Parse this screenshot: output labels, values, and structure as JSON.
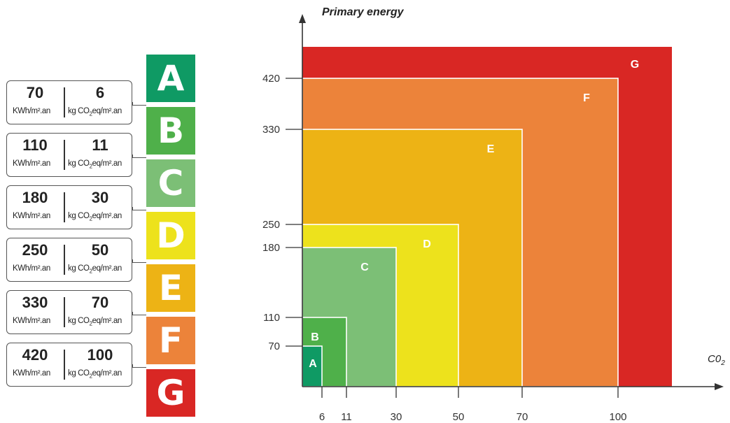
{
  "chart_data": [
    {
      "type": "table",
      "classes": [
        {
          "label": "A",
          "color": "#0f9a64",
          "energy": "70",
          "co2": "6"
        },
        {
          "label": "B",
          "color": "#4fb04a",
          "energy": "110",
          "co2": "11"
        },
        {
          "label": "C",
          "color": "#7cbf76",
          "energy": "180",
          "co2": "30"
        },
        {
          "label": "D",
          "color": "#ede21c",
          "energy": "250",
          "co2": "50"
        },
        {
          "label": "E",
          "color": "#edb315",
          "energy": "330",
          "co2": "70"
        },
        {
          "label": "F",
          "color": "#ec833a",
          "energy": "420",
          "co2": "100"
        },
        {
          "label": "G",
          "color": "#d92724",
          "energy": "",
          "co2": ""
        }
      ],
      "energy_unit": "KWh/m².an",
      "co2_unit_prefix": "kg CO",
      "co2_unit_sub": "2",
      "co2_unit_suffix": "eq/m².an"
    },
    {
      "type": "area",
      "ylabel": "Primary energy",
      "xlabel_main": "C0",
      "xlabel_sub": "2",
      "x_ticks": [
        6,
        11,
        30,
        50,
        70,
        100
      ],
      "y_ticks": [
        70,
        110,
        180,
        250,
        330,
        420
      ],
      "regions": [
        {
          "label": "G",
          "x_max": null,
          "y_max": null,
          "color": "#d92724"
        },
        {
          "label": "F",
          "x_max": 100,
          "y_max": 420,
          "color": "#ec833a"
        },
        {
          "label": "E",
          "x_max": 70,
          "y_max": 330,
          "color": "#edb315"
        },
        {
          "label": "D",
          "x_max": 50,
          "y_max": 250,
          "color": "#ede21c"
        },
        {
          "label": "C",
          "x_max": 30,
          "y_max": 180,
          "color": "#7cbf76"
        },
        {
          "label": "B",
          "x_max": 11,
          "y_max": 110,
          "color": "#4fb04a"
        },
        {
          "label": "A",
          "x_max": 6,
          "y_max": 70,
          "color": "#0f9a64"
        }
      ]
    }
  ]
}
